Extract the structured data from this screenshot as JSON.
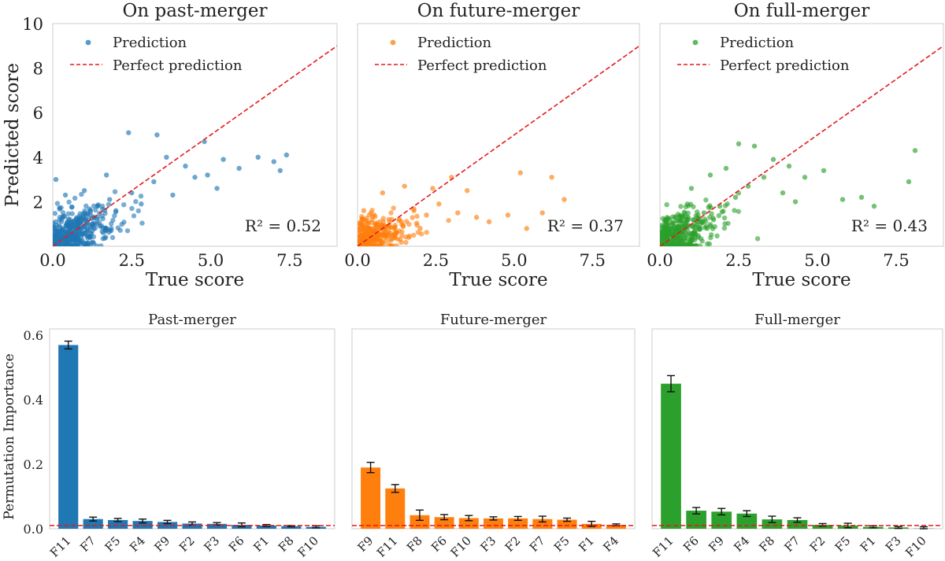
{
  "chart_data": [
    {
      "type": "scatter",
      "title": "On past-merger",
      "xlabel": "True score",
      "ylabel": "Predicted score",
      "xlim": [
        0,
        9
      ],
      "ylim": [
        0,
        10
      ],
      "xticks": [
        "0.0",
        "2.5",
        "5.0",
        "7.5"
      ],
      "yticks": [
        "2",
        "4",
        "6",
        "8",
        "10"
      ],
      "color": "#1f77b4",
      "legend": [
        "Prediction",
        "Perfect prediction"
      ],
      "annotation": "R² = 0.52",
      "r2": 0.52,
      "reference_line": "y = x",
      "points": [
        [
          0.05,
          0.1
        ],
        [
          0.3,
          0.6
        ],
        [
          0.8,
          1.1
        ],
        [
          1.2,
          1.4
        ],
        [
          1.8,
          2.1
        ],
        [
          2.5,
          2.4
        ],
        [
          3.2,
          2.9
        ],
        [
          3.6,
          4.0
        ],
        [
          2.4,
          5.1
        ],
        [
          3.3,
          5.0
        ],
        [
          4.8,
          4.7
        ],
        [
          5.4,
          3.9
        ],
        [
          6.5,
          4.0
        ],
        [
          7.0,
          3.8
        ],
        [
          7.2,
          3.4
        ],
        [
          7.4,
          4.1
        ],
        [
          5.9,
          3.5
        ],
        [
          5.2,
          2.6
        ],
        [
          4.5,
          3.1
        ],
        [
          0.1,
          3.0
        ],
        [
          0.4,
          2.3
        ],
        [
          0.6,
          0.4
        ],
        [
          1.5,
          0.9
        ],
        [
          2.0,
          1.6
        ],
        [
          2.8,
          1.9
        ],
        [
          3.8,
          2.3
        ],
        [
          4.2,
          3.6
        ],
        [
          4.9,
          3.2
        ],
        [
          1.0,
          2.5
        ],
        [
          1.7,
          3.2
        ]
      ]
    },
    {
      "type": "scatter",
      "title": "On future-merger",
      "xlabel": "True score",
      "ylabel": "",
      "xlim": [
        0,
        9
      ],
      "ylim": [
        0,
        10
      ],
      "xticks": [
        "0.0",
        "2.5",
        "5.0",
        "7.5"
      ],
      "color": "#ff7f0e",
      "legend": [
        "Prediction",
        "Perfect prediction"
      ],
      "annotation": "R² = 0.37",
      "r2": 0.37,
      "reference_line": "y = x",
      "points": [
        [
          0.05,
          0.2
        ],
        [
          0.3,
          0.5
        ],
        [
          0.6,
          0.9
        ],
        [
          1.0,
          1.2
        ],
        [
          1.4,
          1.1
        ],
        [
          1.8,
          1.6
        ],
        [
          2.2,
          1.4
        ],
        [
          2.6,
          1.9
        ],
        [
          3.2,
          1.5
        ],
        [
          3.0,
          3.1
        ],
        [
          3.5,
          2.5
        ],
        [
          4.2,
          1.1
        ],
        [
          4.8,
          1.4
        ],
        [
          5.2,
          3.3
        ],
        [
          5.4,
          0.8
        ],
        [
          5.9,
          1.5
        ],
        [
          6.2,
          3.1
        ],
        [
          6.6,
          2.1
        ],
        [
          0.8,
          2.4
        ],
        [
          1.5,
          2.7
        ],
        [
          2.4,
          2.6
        ],
        [
          0.2,
          1.6
        ],
        [
          1.2,
          0.4
        ],
        [
          2.0,
          0.8
        ],
        [
          3.8,
          1.3
        ]
      ]
    },
    {
      "type": "scatter",
      "title": "On full-merger",
      "xlabel": "True score",
      "ylabel": "",
      "xlim": [
        0,
        9
      ],
      "ylim": [
        0,
        10
      ],
      "xticks": [
        "0.0",
        "2.5",
        "5.0",
        "7.5"
      ],
      "color": "#2ca02c",
      "legend": [
        "Prediction",
        "Perfect prediction"
      ],
      "annotation": "R² = 0.43",
      "r2": 0.43,
      "reference_line": "y = x",
      "points": [
        [
          0.05,
          0.1
        ],
        [
          0.4,
          0.7
        ],
        [
          0.9,
          1.2
        ],
        [
          1.4,
          1.5
        ],
        [
          1.9,
          1.8
        ],
        [
          2.4,
          2.2
        ],
        [
          2.8,
          2.7
        ],
        [
          3.3,
          3.1
        ],
        [
          2.5,
          4.6
        ],
        [
          3.0,
          4.5
        ],
        [
          3.6,
          3.9
        ],
        [
          4.1,
          3.6
        ],
        [
          4.6,
          3.1
        ],
        [
          5.2,
          3.4
        ],
        [
          5.8,
          2.1
        ],
        [
          6.4,
          2.2
        ],
        [
          6.8,
          1.8
        ],
        [
          7.9,
          2.9
        ],
        [
          8.1,
          4.3
        ],
        [
          1.0,
          2.6
        ],
        [
          1.6,
          3.2
        ],
        [
          2.1,
          3.5
        ],
        [
          0.6,
          0.3
        ],
        [
          1.5,
          0.8
        ],
        [
          3.9,
          2.4
        ],
        [
          4.3,
          2.0
        ]
      ]
    },
    {
      "type": "bar",
      "title": "Past-merger",
      "ylabel": "Permutation Importance",
      "ylim": [
        0,
        0.62
      ],
      "yticks": [
        "0.0",
        "0.2",
        "0.4",
        "0.6"
      ],
      "color": "#1f77b4",
      "categories": [
        "F11",
        "F7",
        "F5",
        "F4",
        "F9",
        "F2",
        "F3",
        "F6",
        "F1",
        "F8",
        "F10"
      ],
      "values": [
        0.57,
        0.03,
        0.027,
        0.024,
        0.021,
        0.016,
        0.015,
        0.012,
        0.01,
        0.008,
        0.006
      ],
      "errors": [
        0.012,
        0.006,
        0.005,
        0.006,
        0.005,
        0.005,
        0.004,
        0.006,
        0.003,
        0.002,
        0.003
      ],
      "baseline": 0.01
    },
    {
      "type": "bar",
      "title": "Future-merger",
      "ylabel": "",
      "ylim": [
        0,
        0.62
      ],
      "yticks": [
        "0.0",
        "0.2",
        "0.4",
        "0.6"
      ],
      "color": "#ff7f0e",
      "categories": [
        "F9",
        "F11",
        "F8",
        "F6",
        "F10",
        "F3",
        "F2",
        "F7",
        "F5",
        "F1",
        "F4"
      ],
      "values": [
        0.19,
        0.125,
        0.042,
        0.036,
        0.033,
        0.032,
        0.032,
        0.03,
        0.028,
        0.015,
        0.012
      ],
      "errors": [
        0.016,
        0.012,
        0.016,
        0.008,
        0.008,
        0.005,
        0.006,
        0.009,
        0.005,
        0.008,
        0.003
      ],
      "baseline": 0.01
    },
    {
      "type": "bar",
      "title": "Full-merger",
      "ylabel": "",
      "ylim": [
        0,
        0.62
      ],
      "yticks": [
        "0.0",
        "0.2",
        "0.4",
        "0.6"
      ],
      "color": "#2ca02c",
      "categories": [
        "F11",
        "F6",
        "F9",
        "F4",
        "F8",
        "F7",
        "F2",
        "F5",
        "F1",
        "F3",
        "F10"
      ],
      "values": [
        0.45,
        0.056,
        0.053,
        0.047,
        0.029,
        0.027,
        0.012,
        0.01,
        0.006,
        0.004,
        0.001
      ],
      "errors": [
        0.025,
        0.01,
        0.01,
        0.009,
        0.01,
        0.007,
        0.004,
        0.007,
        0.003,
        0.003,
        0.005
      ],
      "baseline": 0.01
    }
  ]
}
